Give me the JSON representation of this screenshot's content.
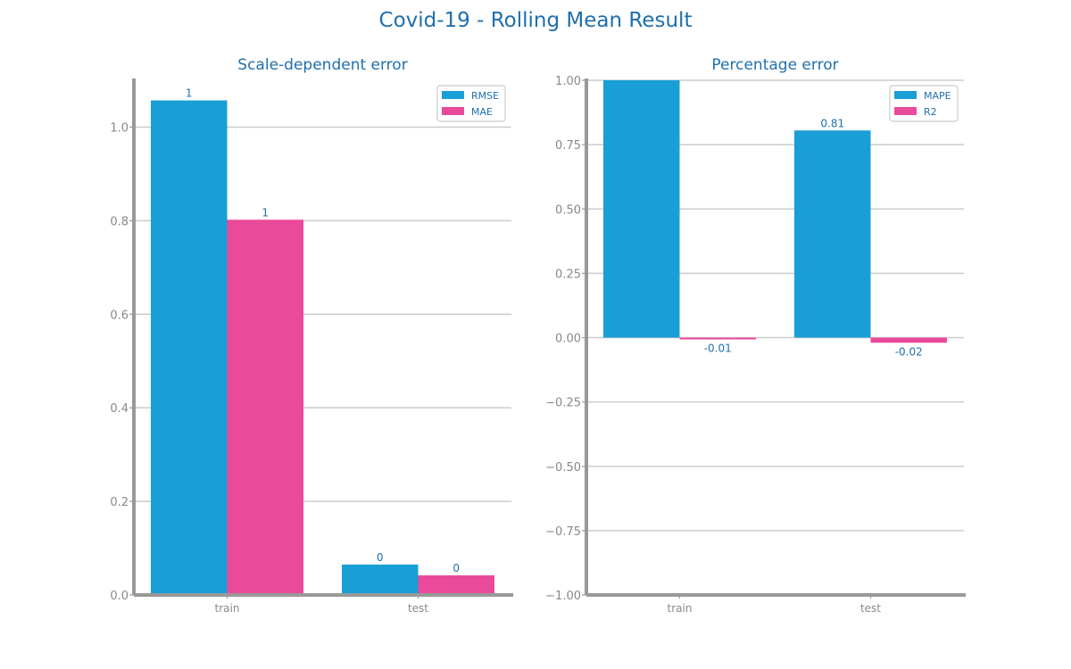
{
  "figure": {
    "title": "Covid-19 - Rolling Mean Result"
  },
  "colors": {
    "series_a": "#1a9ed6",
    "series_b": "#ea4a9a",
    "title": "#1f6fae",
    "axis": "#999999",
    "grid": "#cccccc",
    "tick_text": "#888888",
    "label_text": "#1f6fae"
  },
  "chart_data": [
    {
      "type": "bar",
      "title": "Scale-dependent error",
      "categories": [
        "train",
        "test"
      ],
      "series": [
        {
          "name": "RMSE",
          "values": [
            1.057,
            0.065
          ],
          "labels": [
            "1",
            "0"
          ]
        },
        {
          "name": "MAE",
          "values": [
            0.802,
            0.042
          ],
          "labels": [
            "1",
            "0"
          ]
        }
      ],
      "ylim": [
        0,
        1.1
      ],
      "yticks": [
        0.0,
        0.2,
        0.4,
        0.6,
        0.8,
        1.0
      ],
      "ytick_labels": [
        "0.0",
        "0.2",
        "0.4",
        "0.6",
        "0.8",
        "1.0"
      ],
      "xlabel": "",
      "ylabel": "",
      "grid": "y",
      "legend": "top-right"
    },
    {
      "type": "bar",
      "title": "Percentage error",
      "categories": [
        "train",
        "test"
      ],
      "series": [
        {
          "name": "MAPE",
          "values": [
            1.0,
            0.805
          ],
          "labels": [
            "",
            "0.81"
          ]
        },
        {
          "name": "R2",
          "values": [
            -0.007,
            -0.02
          ],
          "labels": [
            "-0.01",
            "-0.02"
          ]
        }
      ],
      "ylim": [
        -1.0,
        1.0
      ],
      "yticks": [
        -1.0,
        -0.75,
        -0.5,
        -0.25,
        0.0,
        0.25,
        0.5,
        0.75,
        1.0
      ],
      "ytick_labels": [
        "−1.00",
        "−0.75",
        "−0.50",
        "−0.25",
        "0.00",
        "0.25",
        "0.50",
        "0.75",
        "1.00"
      ],
      "xlabel": "",
      "ylabel": "",
      "grid": "y",
      "legend": "top-right"
    }
  ]
}
